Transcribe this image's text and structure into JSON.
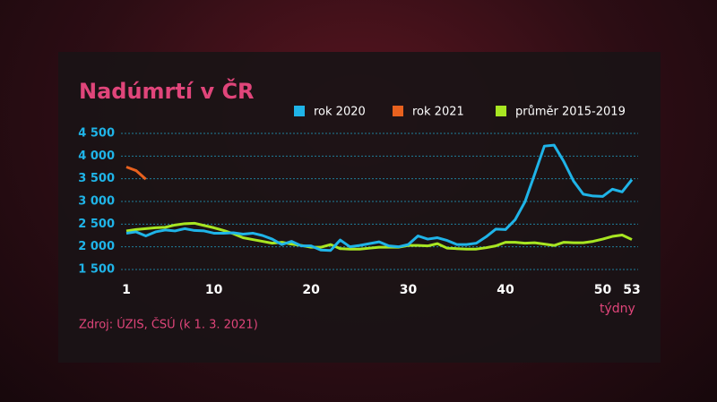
{
  "chart_data": {
    "type": "line",
    "title": "Nadúmrtí v ČR",
    "x": [
      1,
      2,
      3,
      4,
      5,
      6,
      7,
      8,
      9,
      10,
      11,
      12,
      13,
      14,
      15,
      16,
      17,
      18,
      19,
      20,
      21,
      22,
      23,
      24,
      25,
      26,
      27,
      28,
      29,
      30,
      31,
      32,
      33,
      34,
      35,
      36,
      37,
      38,
      39,
      40,
      41,
      42,
      43,
      44,
      45,
      46,
      47,
      48,
      49,
      50,
      51,
      52,
      53
    ],
    "series": [
      {
        "name": "rok 2020",
        "color": "#1fb4e8",
        "values": [
          2300,
          2330,
          2240,
          2330,
          2370,
          2350,
          2400,
          2360,
          2350,
          2300,
          2300,
          2310,
          2280,
          2300,
          2250,
          2170,
          2050,
          2120,
          2020,
          2020,
          1930,
          1920,
          2150,
          2000,
          2030,
          2070,
          2110,
          2020,
          2000,
          2050,
          2240,
          2170,
          2200,
          2140,
          2050,
          2050,
          2080,
          2220,
          2390,
          2380,
          2600,
          2990,
          3600,
          4220,
          4240,
          3880,
          3450,
          3160,
          3120,
          3110,
          3270,
          3210,
          3480
        ]
      },
      {
        "name": "rok 2021",
        "color": "#e8611e",
        "values": [
          3760,
          3680,
          3490,
          null,
          null,
          null,
          null,
          null,
          null,
          null,
          null,
          null,
          null,
          null,
          null,
          null,
          null,
          null,
          null,
          null,
          null,
          null,
          null,
          null,
          null,
          null,
          null,
          null,
          null,
          null,
          null,
          null,
          null,
          null,
          null,
          null,
          null,
          null,
          null,
          null,
          null,
          null,
          null,
          null,
          null,
          null,
          null,
          null,
          null,
          null,
          null,
          null,
          null
        ]
      },
      {
        "name": "průměr 2015-2019",
        "color": "#a8e622",
        "values": [
          2350,
          2380,
          2400,
          2420,
          2430,
          2480,
          2510,
          2520,
          2470,
          2420,
          2360,
          2290,
          2200,
          2160,
          2120,
          2080,
          2100,
          2060,
          2030,
          1990,
          1990,
          2050,
          1960,
          1950,
          1950,
          1970,
          1990,
          1990,
          1990,
          2030,
          2030,
          2020,
          2070,
          1970,
          1960,
          1950,
          1950,
          1980,
          2020,
          2100,
          2100,
          2080,
          2090,
          2060,
          2030,
          2100,
          2090,
          2090,
          2120,
          2170,
          2230,
          2260,
          2160
        ]
      }
    ],
    "xlim": [
      1,
      53
    ],
    "xticks": [
      1,
      10,
      20,
      30,
      40,
      50,
      53
    ],
    "xlabel": "týdny",
    "ylim": [
      1500,
      4500
    ],
    "yticks": [
      {
        "value": 1500,
        "label": "1 500"
      },
      {
        "value": 2000,
        "label": "2 000"
      },
      {
        "value": 2500,
        "label": "2 500"
      },
      {
        "value": 3000,
        "label": "3 000"
      },
      {
        "value": 3500,
        "label": "3 500"
      },
      {
        "value": 4000,
        "label": "4 000"
      },
      {
        "value": 4500,
        "label": "4 500"
      }
    ],
    "grid": true,
    "source": "Zdroj: ÚZIS, ČSÚ (k 1. 3. 2021)"
  }
}
